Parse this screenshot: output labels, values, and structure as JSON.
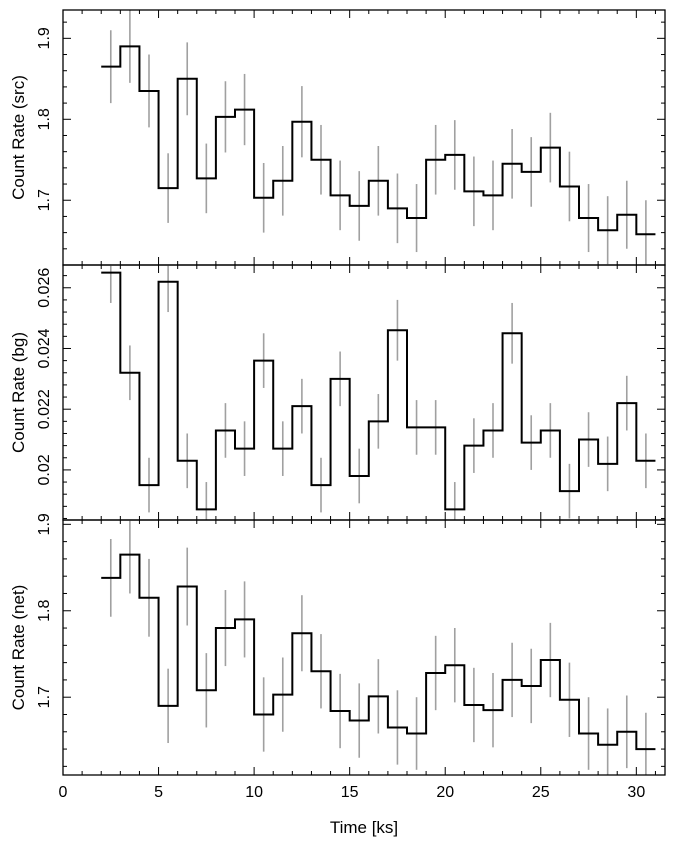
{
  "chart_data": [
    {
      "type": "line",
      "ylabel": "Count Rate (src)",
      "xlim": [
        0,
        31.5
      ],
      "ylim": [
        1.62,
        1.935
      ],
      "yticks": [
        1.7,
        1.8,
        1.9
      ],
      "ytick_labels": [
        "1.7",
        "1.8",
        "1.9"
      ],
      "step_width": 1,
      "x": [
        2.5,
        3.5,
        4.5,
        5.5,
        6.5,
        7.5,
        8.5,
        9.5,
        10.5,
        11.5,
        12.5,
        13.5,
        14.5,
        15.5,
        16.5,
        17.5,
        18.5,
        19.5,
        20.5,
        21.5,
        22.5,
        23.5,
        24.5,
        25.5,
        26.5,
        27.5,
        28.5,
        29.5,
        30.5
      ],
      "y": [
        1.865,
        1.89,
        1.835,
        1.715,
        1.85,
        1.727,
        1.803,
        1.812,
        1.703,
        1.724,
        1.797,
        1.75,
        1.706,
        1.693,
        1.724,
        1.69,
        1.678,
        1.75,
        1.756,
        1.711,
        1.706,
        1.745,
        1.735,
        1.765,
        1.717,
        1.678,
        1.663,
        1.682,
        1.658
      ],
      "yerr": [
        0.045,
        0.045,
        0.045,
        0.043,
        0.045,
        0.043,
        0.044,
        0.044,
        0.043,
        0.043,
        0.044,
        0.043,
        0.043,
        0.043,
        0.043,
        0.043,
        0.042,
        0.043,
        0.043,
        0.043,
        0.043,
        0.043,
        0.043,
        0.043,
        0.043,
        0.042,
        0.042,
        0.042,
        0.042
      ]
    },
    {
      "type": "line",
      "ylabel": "Count Rate (bg)",
      "xlim": [
        0,
        31.5
      ],
      "ylim": [
        0.01835,
        0.02675
      ],
      "yticks": [
        0.02,
        0.022,
        0.024,
        0.026
      ],
      "ytick_labels": [
        "0.02",
        "0.022",
        "0.024",
        "0.026"
      ],
      "step_width": 1,
      "x": [
        2.5,
        3.5,
        4.5,
        5.5,
        6.5,
        7.5,
        8.5,
        9.5,
        10.5,
        11.5,
        12.5,
        13.5,
        14.5,
        15.5,
        16.5,
        17.5,
        18.5,
        19.5,
        20.5,
        21.5,
        22.5,
        23.5,
        24.5,
        25.5,
        26.5,
        27.5,
        28.5,
        29.5,
        30.5
      ],
      "y": [
        0.0265,
        0.0232,
        0.0195,
        0.0262,
        0.0203,
        0.0187,
        0.0213,
        0.0207,
        0.0236,
        0.0207,
        0.0221,
        0.0195,
        0.023,
        0.0198,
        0.0216,
        0.0246,
        0.0214,
        0.0214,
        0.0187,
        0.0208,
        0.0213,
        0.0245,
        0.0209,
        0.0213,
        0.0193,
        0.021,
        0.0202,
        0.0222,
        0.0203
      ],
      "yerr": [
        0.001,
        0.0009,
        0.0009,
        0.001,
        0.0009,
        0.0009,
        0.0009,
        0.0009,
        0.0009,
        0.0009,
        0.0009,
        0.0009,
        0.0009,
        0.0009,
        0.0009,
        0.001,
        0.0009,
        0.0009,
        0.0009,
        0.0009,
        0.0009,
        0.001,
        0.0009,
        0.0009,
        0.0009,
        0.0009,
        0.0009,
        0.0009,
        0.0009
      ]
    },
    {
      "type": "line",
      "ylabel": "Count Rate (net)",
      "xlabel": "Time [ks]",
      "xlim": [
        0,
        31.5
      ],
      "ylim": [
        1.61,
        1.905
      ],
      "yticks": [
        1.7,
        1.8,
        1.9
      ],
      "ytick_labels": [
        "1.7",
        "1.8",
        "1.9"
      ],
      "xticks": [
        0,
        5,
        10,
        15,
        20,
        25,
        30
      ],
      "xtick_labels": [
        "0",
        "5",
        "10",
        "15",
        "20",
        "25",
        "30"
      ],
      "step_width": 1,
      "x": [
        2.5,
        3.5,
        4.5,
        5.5,
        6.5,
        7.5,
        8.5,
        9.5,
        10.5,
        11.5,
        12.5,
        13.5,
        14.5,
        15.5,
        16.5,
        17.5,
        18.5,
        19.5,
        20.5,
        21.5,
        22.5,
        23.5,
        24.5,
        25.5,
        26.5,
        27.5,
        28.5,
        29.5,
        30.5
      ],
      "y": [
        1.838,
        1.865,
        1.815,
        1.69,
        1.828,
        1.708,
        1.78,
        1.79,
        1.68,
        1.703,
        1.774,
        1.73,
        1.684,
        1.673,
        1.701,
        1.665,
        1.658,
        1.728,
        1.737,
        1.691,
        1.685,
        1.72,
        1.713,
        1.743,
        1.697,
        1.658,
        1.645,
        1.66,
        1.64
      ],
      "yerr": [
        0.045,
        0.045,
        0.045,
        0.043,
        0.045,
        0.043,
        0.044,
        0.044,
        0.043,
        0.043,
        0.044,
        0.043,
        0.043,
        0.043,
        0.043,
        0.043,
        0.042,
        0.043,
        0.043,
        0.043,
        0.043,
        0.043,
        0.043,
        0.043,
        0.043,
        0.042,
        0.042,
        0.042,
        0.042
      ]
    }
  ],
  "style": {
    "step_color": "#000000",
    "error_color": "#a0a0a0",
    "axis_color": "#000000"
  }
}
